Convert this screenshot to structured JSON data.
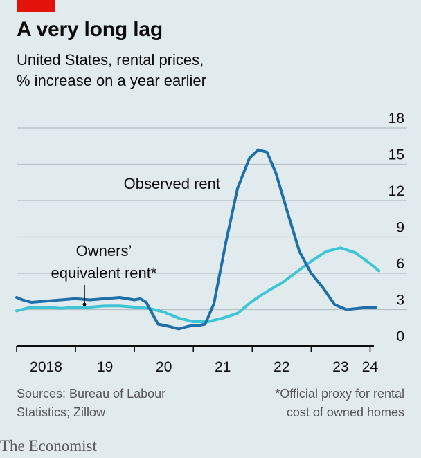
{
  "chart_data": {
    "type": "line",
    "title": "A very long lag",
    "subtitle_lines": [
      "United States, rental prices,",
      "% increase on a year earlier"
    ],
    "ylim": [
      0,
      18
    ],
    "yticks": [
      0,
      3,
      6,
      9,
      12,
      15,
      18
    ],
    "xlim": [
      2018.0,
      2024.3
    ],
    "x_tick_labels": [
      {
        "label": "2018",
        "x": 2018.5
      },
      {
        "label": "19",
        "x": 2019.5
      },
      {
        "label": "20",
        "x": 2020.5
      },
      {
        "label": "21",
        "x": 2021.5
      },
      {
        "label": "22",
        "x": 2022.5
      },
      {
        "label": "23",
        "x": 2023.5
      },
      {
        "label": "24",
        "x": 2024.0
      }
    ],
    "grid": true,
    "series": [
      {
        "name": "Owners' equivalent rent*",
        "color": "#3ec5d5",
        "points": [
          [
            2018.0,
            2.9
          ],
          [
            2018.25,
            3.2
          ],
          [
            2018.5,
            3.2
          ],
          [
            2018.75,
            3.1
          ],
          [
            2019.0,
            3.2
          ],
          [
            2019.25,
            3.2
          ],
          [
            2019.5,
            3.3
          ],
          [
            2019.75,
            3.3
          ],
          [
            2020.0,
            3.2
          ],
          [
            2020.25,
            3.1
          ],
          [
            2020.5,
            2.8
          ],
          [
            2020.75,
            2.3
          ],
          [
            2021.0,
            2.0
          ],
          [
            2021.25,
            2.0
          ],
          [
            2021.5,
            2.3
          ],
          [
            2021.75,
            2.7
          ],
          [
            2022.0,
            3.7
          ],
          [
            2022.25,
            4.5
          ],
          [
            2022.5,
            5.2
          ],
          [
            2022.75,
            6.1
          ],
          [
            2023.0,
            7.0
          ],
          [
            2023.25,
            7.8
          ],
          [
            2023.5,
            8.1
          ],
          [
            2023.75,
            7.7
          ],
          [
            2024.0,
            6.8
          ],
          [
            2024.15,
            6.2
          ]
        ]
      },
      {
        "name": "Observed rent",
        "color": "#1f6fa8",
        "points": [
          [
            2018.0,
            4.0
          ],
          [
            2018.1,
            3.8
          ],
          [
            2018.25,
            3.6
          ],
          [
            2018.5,
            3.7
          ],
          [
            2018.75,
            3.8
          ],
          [
            2019.0,
            3.9
          ],
          [
            2019.25,
            3.8
          ],
          [
            2019.5,
            3.9
          ],
          [
            2019.75,
            4.0
          ],
          [
            2020.0,
            3.8
          ],
          [
            2020.1,
            3.9
          ],
          [
            2020.2,
            3.6
          ],
          [
            2020.4,
            1.8
          ],
          [
            2020.6,
            1.6
          ],
          [
            2020.75,
            1.4
          ],
          [
            2020.9,
            1.6
          ],
          [
            2021.0,
            1.7
          ],
          [
            2021.1,
            1.7
          ],
          [
            2021.2,
            1.8
          ],
          [
            2021.35,
            3.5
          ],
          [
            2021.55,
            8.5
          ],
          [
            2021.75,
            13.0
          ],
          [
            2021.95,
            15.5
          ],
          [
            2022.1,
            16.2
          ],
          [
            2022.25,
            16.0
          ],
          [
            2022.4,
            14.3
          ],
          [
            2022.6,
            11.0
          ],
          [
            2022.8,
            7.8
          ],
          [
            2023.0,
            6.0
          ],
          [
            2023.2,
            4.8
          ],
          [
            2023.4,
            3.4
          ],
          [
            2023.6,
            3.0
          ],
          [
            2023.8,
            3.1
          ],
          [
            2024.0,
            3.2
          ],
          [
            2024.1,
            3.2
          ]
        ]
      }
    ],
    "annotations": {
      "observed_label": "Observed rent",
      "oer_label_line1": "Owners’",
      "oer_label_line2": "equivalent rent*"
    }
  },
  "footer": {
    "source_line1": "Sources: Bureau of Labour",
    "source_line2": "Statistics; Zillow",
    "note_line1": "*Official proxy for rental",
    "note_line2": "cost of owned homes"
  },
  "brand": "The Economist"
}
